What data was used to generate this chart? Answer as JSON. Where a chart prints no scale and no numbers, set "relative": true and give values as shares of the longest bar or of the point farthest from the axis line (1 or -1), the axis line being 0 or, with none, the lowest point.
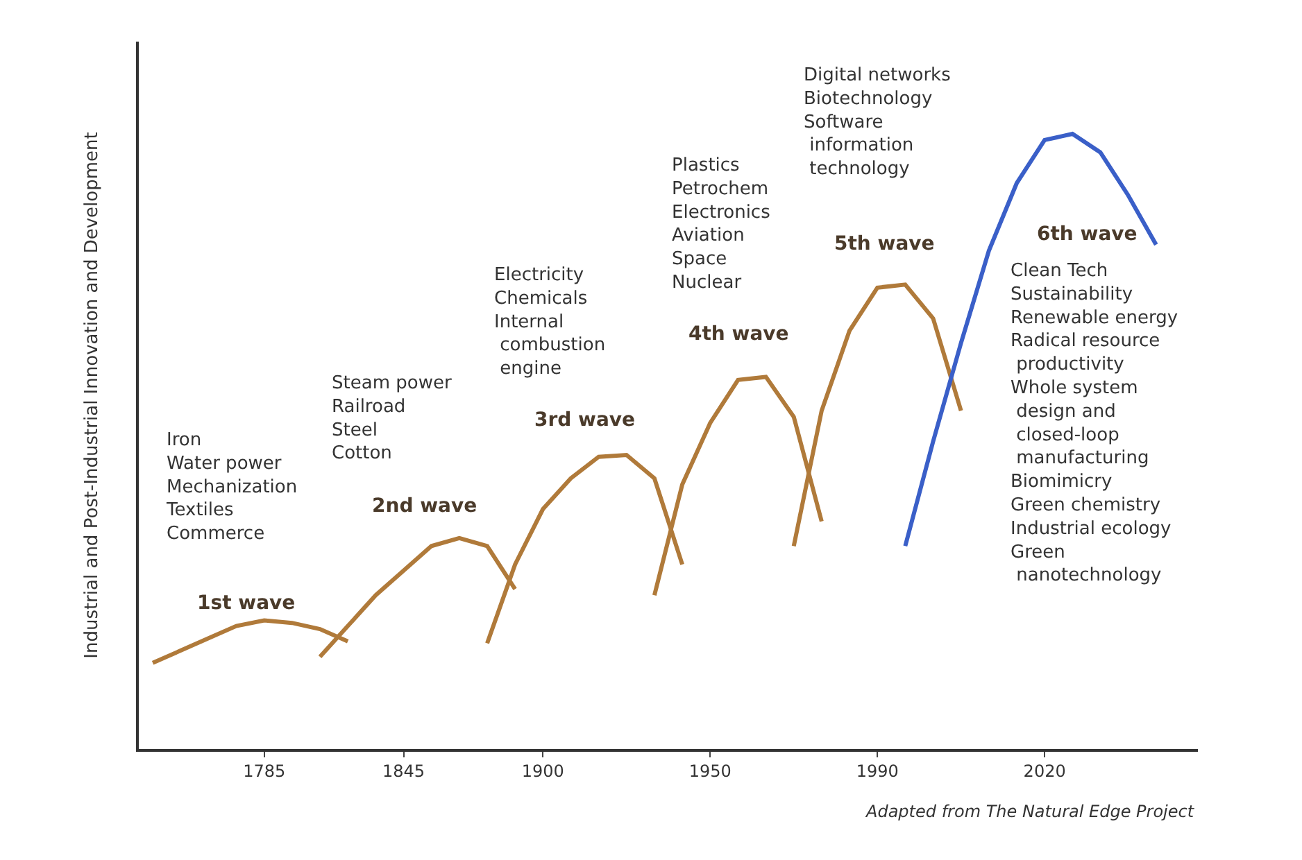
{
  "chart_data": {
    "type": "line",
    "relative": true,
    "ylabel": "Industrial and Post-Industrial Innovation and Development",
    "categories": [
      null,
      null,
      null,
      null,
      "1785",
      null,
      null,
      null,
      null,
      "1845",
      null,
      null,
      null,
      null,
      "1900",
      null,
      null,
      null,
      null,
      null,
      "1950",
      null,
      null,
      null,
      null,
      null,
      "1990",
      null,
      null,
      null,
      null,
      null,
      "2020",
      null,
      null,
      null,
      null,
      null
    ],
    "grid": false,
    "marker": "none",
    "line_style": "solid",
    "series": [
      {
        "color": "#b07a3a",
        "values": [
          0.14,
          0.16,
          0.18,
          0.2,
          0.209,
          0.205,
          0.195,
          0.175,
          null,
          null,
          null,
          null,
          null,
          null,
          null,
          null,
          null,
          null,
          null,
          null,
          null,
          null,
          null,
          null,
          null,
          null,
          null,
          null,
          null,
          null,
          null,
          null,
          null,
          null,
          null,
          null,
          null,
          null
        ]
      },
      {
        "color": "#b07a3a",
        "values": [
          null,
          null,
          null,
          null,
          null,
          null,
          0.15,
          0.2,
          0.25,
          0.29,
          0.33,
          0.343,
          0.33,
          0.26,
          null,
          null,
          null,
          null,
          null,
          null,
          null,
          null,
          null,
          null,
          null,
          null,
          null,
          null,
          null,
          null,
          null,
          null,
          null,
          null,
          null,
          null,
          null,
          null
        ]
      },
      {
        "color": "#b07a3a",
        "values": [
          null,
          null,
          null,
          null,
          null,
          null,
          null,
          null,
          null,
          null,
          null,
          null,
          0.172,
          0.3,
          0.39,
          0.44,
          0.475,
          0.478,
          0.44,
          0.3,
          null,
          null,
          null,
          null,
          null,
          null,
          null,
          null,
          null,
          null,
          null,
          null,
          null,
          null,
          null,
          null,
          null,
          null
        ]
      },
      {
        "color": "#b07a3a",
        "values": [
          null,
          null,
          null,
          null,
          null,
          null,
          null,
          null,
          null,
          null,
          null,
          null,
          null,
          null,
          null,
          null,
          null,
          null,
          0.25,
          0.43,
          0.53,
          0.6,
          0.605,
          0.54,
          0.37,
          null,
          null,
          null,
          null,
          null,
          null,
          null,
          null,
          null,
          null,
          null,
          null,
          null
        ]
      },
      {
        "color": "#b07a3a",
        "values": [
          null,
          null,
          null,
          null,
          null,
          null,
          null,
          null,
          null,
          null,
          null,
          null,
          null,
          null,
          null,
          null,
          null,
          null,
          null,
          null,
          null,
          null,
          null,
          0.33,
          0.55,
          0.68,
          0.75,
          0.755,
          0.7,
          0.55,
          null,
          null,
          null,
          null,
          null,
          null,
          null,
          null
        ]
      },
      {
        "color": "#3a5fc8",
        "values": [
          null,
          null,
          null,
          null,
          null,
          null,
          null,
          null,
          null,
          null,
          null,
          null,
          null,
          null,
          null,
          null,
          null,
          null,
          null,
          null,
          null,
          null,
          null,
          null,
          null,
          null,
          null,
          0.33,
          0.5,
          0.66,
          0.81,
          0.92,
          0.99,
          1.0,
          0.97,
          0.9,
          0.82,
          null
        ]
      }
    ],
    "annotations": [
      "Iron\nWater power\nMechanization\nTextiles\nCommerce",
      "Steam power\nRailroad\nSteel\nCotton",
      "Electricity\nChemicals\nInternal\n combustion\n engine",
      "Plastics\nPetrochem\nElectronics\nAviation\nSpace\nNuclear",
      "Digital networks\nBiotechnology\nSoftware\n information\n technology",
      "Clean Tech\nSustainability\nRenewable energy\nRadical resource\n productivity\nWhole system\n design and\n closed-loop\n manufacturing\nBiomimicry\nGreen chemistry\nIndustrial ecology\nGreen\n nanotechnology",
      "1st wave",
      "2nd wave",
      "3rd wave",
      "4th wave",
      "5th wave",
      "6th wave",
      "Adapted from The Natural Edge Project"
    ]
  }
}
